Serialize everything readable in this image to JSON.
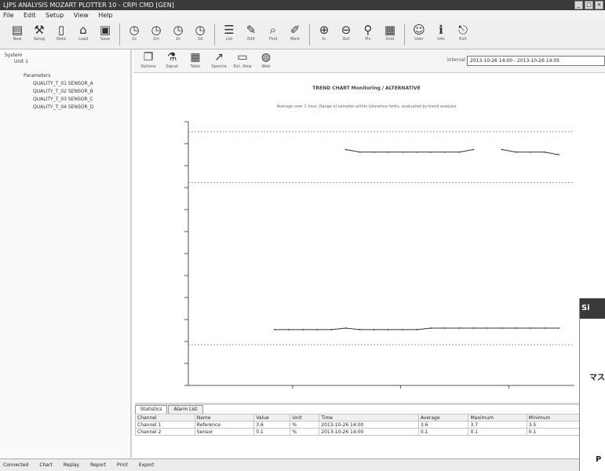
{
  "window": {
    "title": "LJPS ANALYSIS  MOZART PLOTTER  10   -   CRPI  CMD  [GEN]",
    "controls": [
      "_",
      "□",
      "×"
    ]
  },
  "menubar": [
    "File",
    "Edit",
    "Setup",
    "View",
    "Help"
  ],
  "toolbar": {
    "buttons": [
      {
        "icon": "chart-icon",
        "label": "New"
      },
      {
        "icon": "wrench-icon",
        "label": "Setup"
      },
      {
        "icon": "document-icon",
        "label": "Note"
      },
      {
        "icon": "open-icon",
        "label": "Load"
      },
      {
        "icon": "save-icon",
        "label": "Save"
      },
      {
        "icon": "clock-icon",
        "label": "1s"
      },
      {
        "icon": "clock-icon",
        "label": "1m"
      },
      {
        "icon": "clock-icon",
        "label": "1h"
      },
      {
        "icon": "clock-icon",
        "label": "1d"
      },
      {
        "icon": "list-icon",
        "label": "List"
      },
      {
        "icon": "edit-icon",
        "label": "Edit"
      },
      {
        "icon": "search-icon",
        "label": "Find"
      },
      {
        "icon": "pen-icon",
        "label": "Mark"
      },
      {
        "icon": "zoom-in-icon",
        "label": "In"
      },
      {
        "icon": "zoom-out-icon",
        "label": "Out"
      },
      {
        "icon": "pin-icon",
        "label": "Pin"
      },
      {
        "icon": "grid-icon",
        "label": "Grid"
      },
      {
        "icon": "user-icon",
        "label": "User"
      },
      {
        "icon": "info-icon",
        "label": "Info"
      },
      {
        "icon": "exit-icon",
        "label": "Exit"
      }
    ]
  },
  "tree": {
    "nodes": [
      {
        "label": "System",
        "depth": 0
      },
      {
        "label": "Unit 1",
        "depth": 1
      },
      {
        "label": "Parameters",
        "depth": 2
      },
      {
        "label": "QUALITY_T_01 SENSOR_A",
        "depth": 3
      },
      {
        "label": "QUALITY_T_02 SENSOR_B",
        "depth": 3
      },
      {
        "label": "QUALITY_T_03 SENSOR_C",
        "depth": 3
      },
      {
        "label": "QUALITY_T_04 SENSOR_D",
        "depth": 3
      }
    ]
  },
  "viewtools": {
    "buttons": [
      {
        "icon": "copy-icon",
        "label": "Options"
      },
      {
        "icon": "filter-icon",
        "label": "Signal"
      },
      {
        "icon": "table-icon",
        "label": "Table"
      },
      {
        "icon": "trend-icon",
        "label": "Spectra"
      },
      {
        "icon": "window-icon",
        "label": "Ext. View"
      },
      {
        "icon": "globe-icon",
        "label": "Web"
      }
    ],
    "interval_label": "Interval",
    "interval_value": "2013-10-26 14:00 - 2013-10-26 14:05"
  },
  "chart": {
    "title": "TREND CHART Monitoring / ALTERNATIVE",
    "subtitle": "Average over 1 hour, Range of samples within tolerance limits, evaluated by trend analysis"
  },
  "chart_data": {
    "type": "line",
    "x": [
      0,
      1,
      2,
      3,
      4,
      5,
      6,
      7,
      8,
      9,
      10,
      11,
      12,
      13,
      14,
      15,
      16,
      17,
      18,
      19,
      20
    ],
    "series": [
      {
        "name": "",
        "color": "#333333",
        "values": [
          null,
          null,
          null,
          null,
          null,
          3.65,
          3.6,
          3.6,
          3.6,
          3.6,
          3.6,
          3.6,
          3.6,
          3.6,
          3.65,
          null,
          3.65,
          3.6,
          3.6,
          3.6,
          3.55
        ]
      },
      {
        "name": "",
        "color": "#333333",
        "values": [
          0.1,
          0.1,
          0.1,
          0.1,
          0.1,
          0.13,
          0.1,
          0.1,
          0.1,
          0.1,
          0.1,
          0.13,
          0.13,
          0.13,
          0.13,
          0.13,
          0.13,
          0.13,
          0.13,
          0.13,
          0.13
        ]
      }
    ],
    "ylim": [
      -1.0,
      4.2
    ],
    "grid": "dotted reference lines",
    "reference_lines": [
      4.0,
      3.0,
      -0.2
    ]
  },
  "table": {
    "tabs": [
      "Statistics",
      "Alarm List"
    ],
    "columns": [
      "Channel",
      "Name",
      "Value",
      "Unit",
      "Time",
      "Average",
      "Maximum",
      "Minimum"
    ],
    "rows": [
      [
        "Channel 1",
        "Reference",
        "3.6",
        "%",
        "2013-10-26 14:00",
        "3.6",
        "3.7",
        "3.5"
      ],
      [
        "Channel 2",
        "Sensor",
        "0.1",
        "%",
        "2013-10-26 14:00",
        "0.1",
        "0.1",
        "0.1"
      ]
    ]
  },
  "popup": {
    "head": "Si",
    "t1": "マス",
    "t2": "P"
  },
  "statusbar": [
    "Connected",
    "Chart",
    "Replay",
    "Report",
    "Print",
    "Export"
  ]
}
